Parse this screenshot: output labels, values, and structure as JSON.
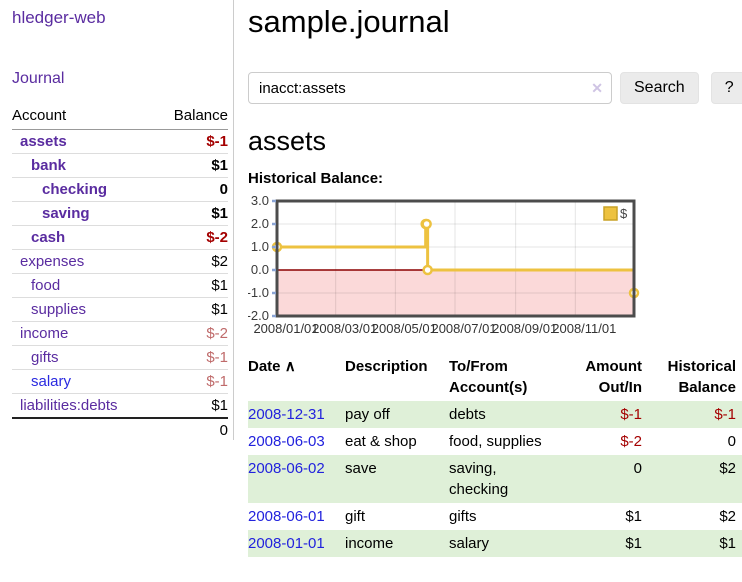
{
  "app": {
    "brand": "hledger-web",
    "nav": {
      "journal": "Journal"
    }
  },
  "sidebar": {
    "table_header": {
      "account": "Account",
      "balance": "Balance"
    },
    "accounts": [
      {
        "name": "assets",
        "depth": 1,
        "balance": "$-1",
        "in_current": true
      },
      {
        "name": "bank",
        "depth": 2,
        "balance": "$1",
        "in_current": true
      },
      {
        "name": "checking",
        "depth": 3,
        "balance": "0",
        "in_current": true
      },
      {
        "name": "saving",
        "depth": 3,
        "balance": "$1",
        "in_current": true
      },
      {
        "name": "cash",
        "depth": 2,
        "balance": "$-2",
        "in_current": true
      },
      {
        "name": "expenses",
        "depth": 1,
        "balance": "$2"
      },
      {
        "name": "food",
        "depth": 2,
        "balance": "$1"
      },
      {
        "name": "supplies",
        "depth": 2,
        "balance": "$1"
      },
      {
        "name": "income",
        "depth": 1,
        "balance": "$-2",
        "muted_negative": true
      },
      {
        "name": "gifts",
        "depth": 2,
        "balance": "$-1",
        "muted_negative": true
      },
      {
        "name": "salary",
        "depth": 2,
        "balance": "$-1",
        "muted_negative": true,
        "link_color": "blue"
      },
      {
        "name": "liabilities:debts",
        "depth": 1,
        "balance": "$1"
      }
    ],
    "total": "0"
  },
  "main": {
    "title": "sample.journal",
    "search": {
      "value": "inacct:assets",
      "clear_icon": "✕",
      "search_button": "Search",
      "help_button": "?"
    },
    "account_heading": "assets"
  },
  "chart_data": {
    "type": "line",
    "title": "Historical Balance:",
    "step": true,
    "series": [
      {
        "name": "$",
        "color": "#edc240",
        "points": [
          [
            "2008-01-01",
            1
          ],
          [
            "2008-06-01",
            2
          ],
          [
            "2008-06-02",
            2
          ],
          [
            "2008-06-03",
            0
          ],
          [
            "2008-12-31",
            -1
          ]
        ]
      }
    ],
    "x_ticks": [
      "2008/01/01",
      "2008/03/01",
      "2008/05/01",
      "2008/07/01",
      "2008/09/01",
      "2008/11/01"
    ],
    "y_ticks": [
      3.0,
      2.0,
      1.0,
      0.0,
      -1.0,
      -2.0
    ],
    "xlim": [
      "2008-01-01",
      "2008-12-31"
    ],
    "ylim": [
      -2,
      3
    ],
    "grid": true,
    "zero_line_color": "#8b0000",
    "negative_region_color": "#fbd9d9",
    "legend": {
      "label": "$",
      "position": "top-right"
    }
  },
  "register": {
    "sort_icon": "∧",
    "columns": [
      "Date",
      "Description",
      "To/From Account(s)",
      "Amount Out/In",
      "Historical Balance"
    ],
    "rows": [
      {
        "date": "2008-12-31",
        "description": "pay off",
        "accounts": "debts",
        "amount": "$-1",
        "balance": "$-1"
      },
      {
        "date": "2008-06-03",
        "description": "eat & shop",
        "accounts": "food, supplies",
        "amount": "$-2",
        "balance": "0"
      },
      {
        "date": "2008-06-02",
        "description": "save",
        "accounts": "saving, checking",
        "amount": "0",
        "balance": "$2"
      },
      {
        "date": "2008-06-01",
        "description": "gift",
        "accounts": "gifts",
        "amount": "$1",
        "balance": "$2"
      },
      {
        "date": "2008-01-01",
        "description": "income",
        "accounts": "salary",
        "amount": "$1",
        "balance": "$1"
      }
    ]
  }
}
